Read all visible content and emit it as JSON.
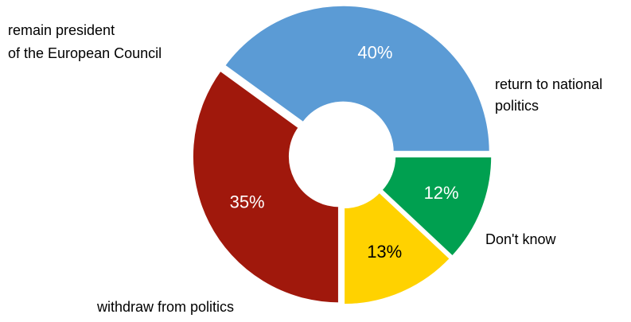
{
  "chart_data": {
    "type": "pie",
    "donut": true,
    "slices": [
      {
        "label_lines": [
          "return to national",
          "politics"
        ],
        "value": 12,
        "value_label": "12%",
        "color": "#00a050",
        "text_color": "#ffffff"
      },
      {
        "label_lines": [
          "Don't know"
        ],
        "value": 13,
        "value_label": "13%",
        "color": "#ffd200",
        "text_color": "#000000"
      },
      {
        "label_lines": [
          "withdraw from politics"
        ],
        "value": 35,
        "value_label": "35%",
        "color": "#a0180c",
        "text_color": "#ffffff"
      },
      {
        "label_lines": [
          "remain president",
          "of the European Council"
        ],
        "value": 40,
        "value_label": "40%",
        "color": "#5b9bd5",
        "text_color": "#ffffff"
      }
    ],
    "start_angle_deg": 0,
    "direction": "clockwise"
  }
}
